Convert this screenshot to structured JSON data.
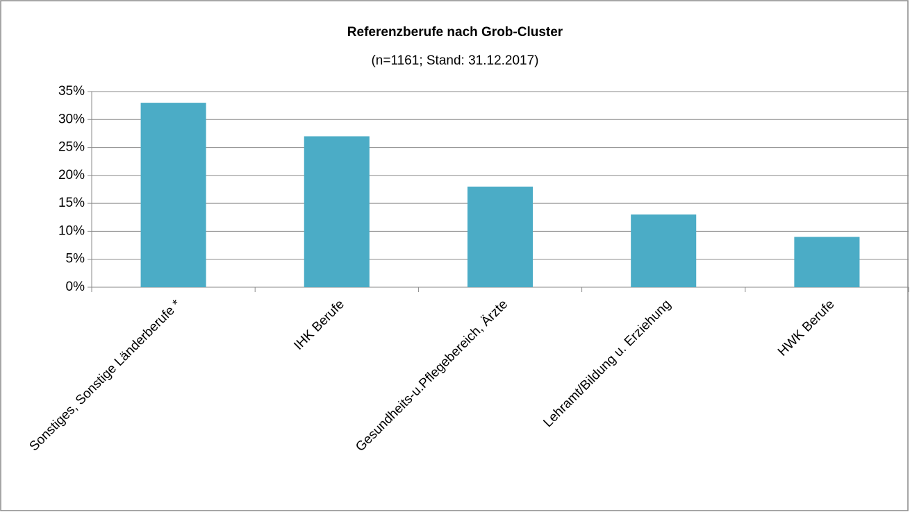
{
  "chart_data": {
    "type": "bar",
    "title": "Referenzberufe nach Grob-Cluster",
    "subtitle": "(n=1161; Stand: 31.12.2017)",
    "categories": [
      "Sonstiges, Sonstige Länderberufe *",
      "IHK Berufe",
      "Gesundheits-u.Pflegebereich, Ärzte",
      "Lehramt/Bildung u. Erziehung",
      "HWK Berufe"
    ],
    "values": [
      33,
      27,
      18,
      13,
      9
    ],
    "color": "#4bacc6",
    "ylim": [
      0,
      35
    ],
    "yticks": [
      {
        "value": 0,
        "label": "0%"
      },
      {
        "value": 5,
        "label": "5%"
      },
      {
        "value": 10,
        "label": "10%"
      },
      {
        "value": 15,
        "label": "15%"
      },
      {
        "value": 20,
        "label": "20%"
      },
      {
        "value": 25,
        "label": "25%"
      },
      {
        "value": 30,
        "label": "30%"
      },
      {
        "value": 35,
        "label": "35%"
      }
    ],
    "grid": true
  }
}
